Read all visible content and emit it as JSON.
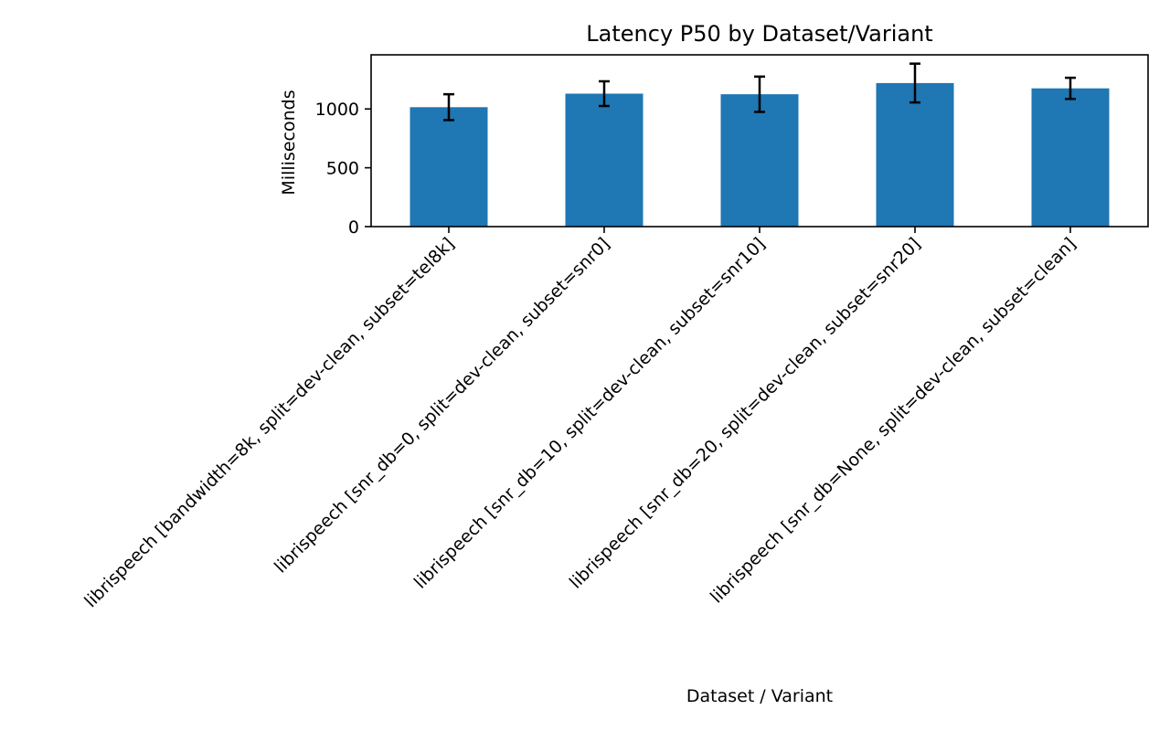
{
  "chart_data": {
    "type": "bar",
    "title": "Latency P50 by Dataset/Variant",
    "xlabel": "Dataset / Variant",
    "ylabel": "Milliseconds",
    "categories": [
      "librispeech [bandwidth=8k, split=dev-clean, subset=tel8k]",
      "librispeech [snr_db=0, split=dev-clean, subset=snr0]",
      "librispeech [snr_db=10, split=dev-clean, subset=snr10]",
      "librispeech [snr_db=20, split=dev-clean, subset=snr20]",
      "librispeech [snr_db=None, split=dev-clean, subset=clean]"
    ],
    "values": [
      1015,
      1130,
      1125,
      1220,
      1175
    ],
    "error": [
      110,
      105,
      150,
      165,
      90
    ],
    "ylim": [
      0,
      1460
    ],
    "yticks": [
      0,
      500,
      1000
    ],
    "grid": false,
    "legend": "none",
    "colors": {
      "bar": "#1f77b4",
      "error": "#000000",
      "axis": "#000000"
    }
  }
}
